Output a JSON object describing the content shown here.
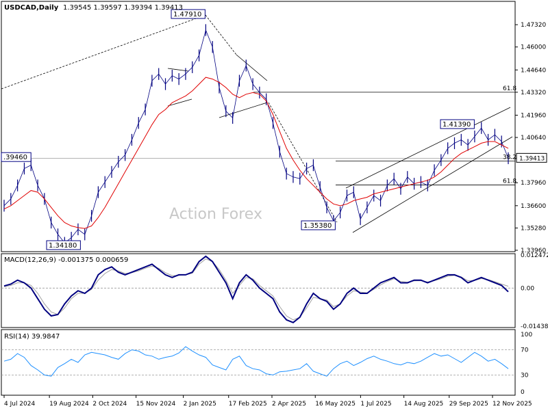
{
  "header": {
    "symbol": "USDCAD,Daily",
    "ohlc": "1.39545 1.39597 1.39394 1.39413"
  },
  "watermark": "Action Forex",
  "colors": {
    "price_bar": "#000080",
    "sma": "#e00000",
    "macd_main": "#000080",
    "macd_signal": "#a0a0a0",
    "rsi": "#1e90ff",
    "trendlines": "#000000",
    "current_price_box": "#ffffff"
  },
  "chart_data": [
    {
      "type": "line",
      "panel": "price",
      "ylim": [
        1.3396,
        1.4862
      ],
      "y_ticks": [
        "1.47320",
        "1.46000",
        "1.44640",
        "1.43320",
        "1.41960",
        "1.40640",
        "1.39413",
        "1.37960",
        "1.36600",
        "1.35280",
        "1.33960"
      ],
      "x_tick_labels": [
        "4 Jul 2024",
        "19 Aug 2024",
        "2 Oct 2024",
        "15 Nov 2024",
        "2 Jan 2025",
        "17 Feb 2025",
        "2 Apr 2025",
        "16 May 2025",
        "1 Jul 2025",
        "14 Aug 2025",
        "29 Sep 2025",
        "12 Nov 2025"
      ],
      "current_price": "1.39413",
      "annotations": [
        {
          "text": "1.47910",
          "x": "2 Feb 2025",
          "y": 1.4791
        },
        {
          "text": "1.34180",
          "x": "10 Sep 2024",
          "y": 1.3418
        },
        {
          "text": ".39460",
          "x": "4 Jul 2024",
          "y": 1.3946
        },
        {
          "text": "1.35380",
          "x": "3 Jun 2025",
          "y": 1.3538
        },
        {
          "text": "1.41390",
          "x": "1 Nov 2025",
          "y": 1.4139
        },
        {
          "text": "61.8",
          "x": "30 Nov 2025",
          "y": 1.4332
        },
        {
          "text": "61.8",
          "x": "30 Nov 2025",
          "y": 1.3783
        },
        {
          "text": "38.2",
          "x": "30 Nov 2025",
          "y": 1.3925
        }
      ],
      "series": [
        {
          "name": "Close",
          "x": [
            "2024-07-04",
            "2024-07-11",
            "2024-07-18",
            "2024-07-25",
            "2024-08-01",
            "2024-08-08",
            "2024-08-15",
            "2024-08-22",
            "2024-08-29",
            "2024-09-05",
            "2024-09-12",
            "2024-09-19",
            "2024-09-26",
            "2024-10-03",
            "2024-10-10",
            "2024-10-17",
            "2024-10-24",
            "2024-10-31",
            "2024-11-07",
            "2024-11-14",
            "2024-11-21",
            "2024-11-28",
            "2024-12-05",
            "2024-12-12",
            "2024-12-19",
            "2024-12-26",
            "2025-01-02",
            "2025-01-09",
            "2025-01-16",
            "2025-01-23",
            "2025-01-30",
            "2025-02-03",
            "2025-02-06",
            "2025-02-13",
            "2025-02-20",
            "2025-02-27",
            "2025-03-06",
            "2025-03-13",
            "2025-03-20",
            "2025-03-27",
            "2025-04-03",
            "2025-04-10",
            "2025-04-17",
            "2025-04-24",
            "2025-05-01",
            "2025-05-08",
            "2025-05-15",
            "2025-05-22",
            "2025-05-29",
            "2025-06-03",
            "2025-06-10",
            "2025-06-17",
            "2025-06-24",
            "2025-07-01",
            "2025-07-08",
            "2025-07-15",
            "2025-07-22",
            "2025-07-29",
            "2025-08-05",
            "2025-08-12",
            "2025-08-19",
            "2025-08-26",
            "2025-09-02",
            "2025-09-09",
            "2025-09-16",
            "2025-09-23",
            "2025-09-30",
            "2025-10-07",
            "2025-10-14",
            "2025-10-21",
            "2025-10-28",
            "2025-11-01",
            "2025-11-07",
            "2025-11-14",
            "2025-11-21",
            "2025-11-28"
          ],
          "values": [
            1.366,
            1.37,
            1.378,
            1.388,
            1.39,
            1.378,
            1.37,
            1.356,
            1.349,
            1.344,
            1.347,
            1.352,
            1.349,
            1.36,
            1.374,
            1.38,
            1.386,
            1.392,
            1.396,
            1.405,
            1.415,
            1.423,
            1.44,
            1.444,
            1.438,
            1.443,
            1.441,
            1.444,
            1.448,
            1.455,
            1.47,
            1.46,
            1.436,
            1.422,
            1.418,
            1.44,
            1.449,
            1.438,
            1.433,
            1.429,
            1.415,
            1.398,
            1.385,
            1.383,
            1.382,
            1.388,
            1.39,
            1.377,
            1.365,
            1.357,
            1.362,
            1.372,
            1.374,
            1.358,
            1.365,
            1.372,
            1.369,
            1.378,
            1.382,
            1.376,
            1.383,
            1.379,
            1.38,
            1.378,
            1.387,
            1.393,
            1.4,
            1.403,
            1.405,
            1.402,
            1.407,
            1.412,
            1.405,
            1.408,
            1.404,
            1.3941
          ]
        },
        {
          "name": "SMA",
          "values": [
            1.364,
            1.366,
            1.369,
            1.372,
            1.375,
            1.374,
            1.37,
            1.365,
            1.36,
            1.356,
            1.354,
            1.353,
            1.3525,
            1.354,
            1.359,
            1.365,
            1.372,
            1.379,
            1.386,
            1.393,
            1.4,
            1.407,
            1.414,
            1.42,
            1.423,
            1.427,
            1.429,
            1.431,
            1.434,
            1.438,
            1.442,
            1.441,
            1.439,
            1.436,
            1.432,
            1.43,
            1.432,
            1.433,
            1.432,
            1.428,
            1.42,
            1.41,
            1.4,
            1.393,
            1.387,
            1.382,
            1.378,
            1.374,
            1.37,
            1.367,
            1.366,
            1.367,
            1.369,
            1.37,
            1.371,
            1.373,
            1.374,
            1.375,
            1.376,
            1.377,
            1.378,
            1.379,
            1.38,
            1.381,
            1.383,
            1.386,
            1.39,
            1.394,
            1.397,
            1.399,
            1.401,
            1.403,
            1.404,
            1.404,
            1.402,
            1.4
          ]
        }
      ]
    },
    {
      "type": "line",
      "panel": "macd",
      "label": "MACD(12,26,9) -0.001375 0.000659",
      "ylim": [
        -0.01438,
        0.01247
      ],
      "y_ticks": [
        "0.012472",
        "0.00",
        "-0.014389"
      ],
      "series": [
        {
          "name": "MACD",
          "values": [
            0.0008,
            0.0015,
            0.003,
            0.002,
            0.0,
            -0.004,
            -0.008,
            -0.0105,
            -0.01,
            -0.006,
            -0.003,
            -0.001,
            -0.002,
            0.0,
            0.005,
            0.007,
            0.008,
            0.006,
            0.005,
            0.006,
            0.007,
            0.008,
            0.009,
            0.007,
            0.005,
            0.004,
            0.005,
            0.005,
            0.006,
            0.01,
            0.012,
            0.01,
            0.006,
            0.002,
            -0.004,
            0.002,
            0.005,
            0.003,
            0.0,
            -0.002,
            -0.004,
            -0.009,
            -0.012,
            -0.013,
            -0.011,
            -0.006,
            -0.002,
            -0.004,
            -0.005,
            -0.008,
            -0.006,
            -0.002,
            0.0,
            -0.002,
            -0.002,
            0.0,
            0.002,
            0.003,
            0.004,
            0.002,
            0.002,
            0.003,
            0.003,
            0.002,
            0.003,
            0.004,
            0.005,
            0.005,
            0.004,
            0.002,
            0.003,
            0.004,
            0.003,
            0.002,
            0.001,
            -0.0014
          ]
        },
        {
          "name": "Signal",
          "values": [
            0.0005,
            0.001,
            0.002,
            0.002,
            0.001,
            -0.002,
            -0.006,
            -0.009,
            -0.01,
            -0.0075,
            -0.004,
            -0.002,
            -0.002,
            -0.0005,
            0.003,
            0.0055,
            0.007,
            0.0065,
            0.0055,
            0.0058,
            0.0065,
            0.0075,
            0.0083,
            0.0075,
            0.0058,
            0.0047,
            0.0048,
            0.005,
            0.0056,
            0.009,
            0.011,
            0.01,
            0.007,
            0.003,
            -0.002,
            0.001,
            0.004,
            0.0035,
            0.001,
            -0.001,
            -0.003,
            -0.007,
            -0.0105,
            -0.012,
            -0.011,
            -0.0075,
            -0.0035,
            -0.004,
            -0.0045,
            -0.007,
            -0.006,
            -0.003,
            -0.001,
            -0.0015,
            -0.0018,
            -0.0005,
            0.0012,
            0.0025,
            0.0035,
            0.0025,
            0.0022,
            0.0027,
            0.0028,
            0.0023,
            0.0028,
            0.0035,
            0.0045,
            0.0048,
            0.0042,
            0.0028,
            0.0029,
            0.0036,
            0.0032,
            0.0024,
            0.0015,
            0.0007
          ]
        }
      ]
    },
    {
      "type": "line",
      "panel": "rsi",
      "label": "RSI(14) 39.9847",
      "ylim": [
        0,
        100
      ],
      "y_ticks": [
        "100",
        "70",
        "30",
        "0"
      ],
      "series": [
        {
          "name": "RSI",
          "values": [
            52,
            55,
            64,
            58,
            45,
            38,
            30,
            28,
            42,
            48,
            55,
            50,
            62,
            66,
            64,
            62,
            58,
            55,
            64,
            70,
            68,
            62,
            60,
            55,
            58,
            60,
            65,
            75,
            68,
            62,
            58,
            46,
            42,
            38,
            55,
            60,
            45,
            40,
            38,
            32,
            30,
            35,
            36,
            38,
            40,
            48,
            36,
            32,
            28,
            40,
            48,
            52,
            45,
            50,
            56,
            60,
            55,
            52,
            48,
            46,
            50,
            48,
            52,
            58,
            64,
            60,
            62,
            56,
            50,
            58,
            66,
            60,
            52,
            55,
            48,
            40
          ]
        }
      ]
    }
  ]
}
